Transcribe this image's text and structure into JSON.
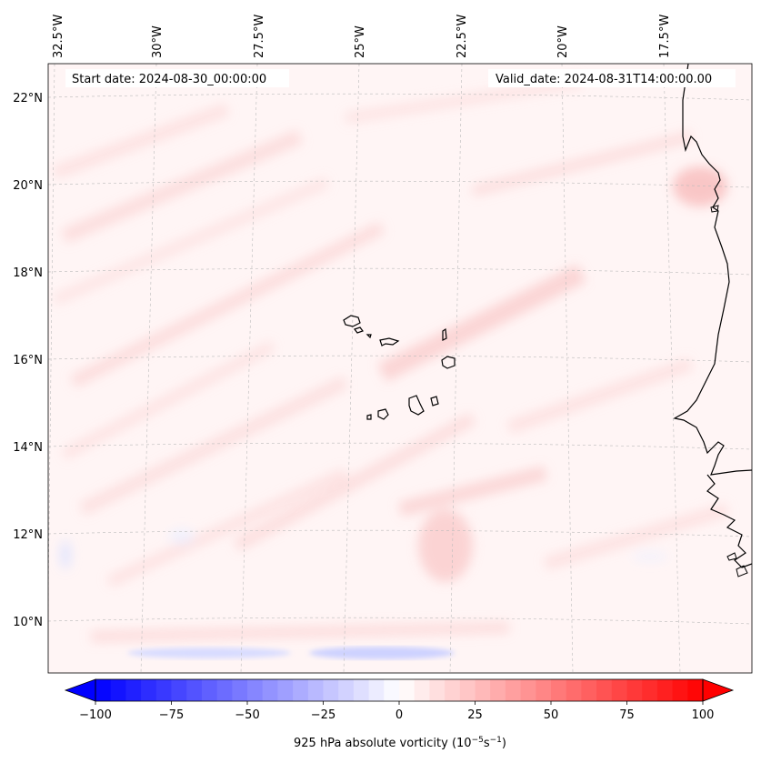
{
  "map": {
    "start_date_label": "Start date: 2024-08-30_00:00:00",
    "valid_date_label": "Valid_date: 2024-08-31T14:00:00.00",
    "variable": "925 hPa absolute vorticity",
    "lon_labels": [
      "32.5°W",
      "30°W",
      "27.5°W",
      "25°W",
      "22.5°W",
      "20°W",
      "17.5°W"
    ],
    "lat_labels": [
      "22°N",
      "20°N",
      "18°N",
      "16°N",
      "14°N",
      "12°N",
      "10°N"
    ],
    "features": [
      "cape-verde-islands",
      "west-africa-coastline"
    ]
  },
  "colorbar": {
    "label_prefix": "925 hPa absolute vorticity (10",
    "label_exp1": "−5",
    "label_mid": "s",
    "label_exp2": "−1",
    "label_suffix": ")",
    "ticks": [
      "−100",
      "−75",
      "−50",
      "−25",
      "0",
      "25",
      "50",
      "75",
      "100"
    ],
    "range": [
      -100,
      100
    ],
    "n_levels": 40,
    "colormap": "bwr",
    "extend": "both"
  },
  "colors": {
    "negative": "#0000ff",
    "neutral": "#ffffff",
    "positive": "#ff0000",
    "background_field": "#fff4f4"
  }
}
